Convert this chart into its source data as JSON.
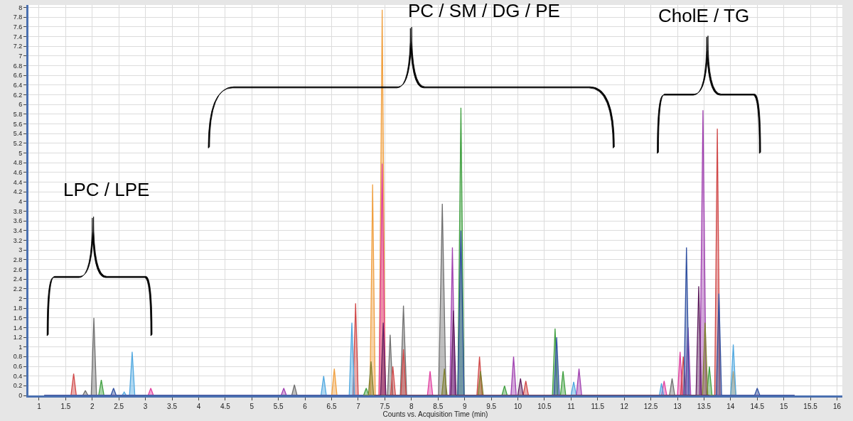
{
  "chart_data": {
    "type": "area",
    "xlabel": "Counts vs. Acquisition Time (min)",
    "xlim": [
      0.8,
      16.1
    ],
    "ylim": [
      0,
      8.05
    ],
    "xticks": [
      1,
      1.5,
      2,
      2.5,
      3,
      3.5,
      4,
      4.5,
      5,
      5.5,
      6,
      6.5,
      7,
      7.5,
      8,
      8.5,
      9,
      9.5,
      10,
      10.5,
      11,
      11.5,
      12,
      12.5,
      13,
      13.5,
      14,
      14.5,
      15,
      15.5,
      16
    ],
    "yticks": [
      0,
      0.2,
      0.4,
      0.6,
      0.8,
      1,
      1.2,
      1.4,
      1.6,
      1.8,
      2,
      2.2,
      2.4,
      2.6,
      2.8,
      3,
      3.2,
      3.4,
      3.6,
      3.8,
      4,
      4.2,
      4.4,
      4.6,
      4.8,
      5,
      5.2,
      5.4,
      5.6,
      5.8,
      6,
      6.2,
      6.4,
      6.6,
      6.8,
      7,
      7.2,
      7.4,
      7.6,
      7.8,
      8
    ],
    "grid": true,
    "marker": "none",
    "annotations": [
      "LPC / LPE",
      "PC / SM / DG / PE",
      "CholE / TG"
    ],
    "series": [
      {
        "color": "#707070",
        "x": [
          1.1,
          1.82,
          1.87,
          1.92,
          1.98,
          2.03,
          2.08,
          5.75,
          5.8,
          5.85,
          7.55,
          7.6,
          7.65,
          7.79,
          7.85,
          7.91,
          8.51,
          8.58,
          8.65,
          12.85,
          12.9,
          12.95,
          15.2
        ],
        "values": [
          0,
          0,
          0.1,
          0,
          0,
          1.6,
          0,
          0,
          0.22,
          0,
          0,
          1.25,
          0,
          0,
          1.85,
          0,
          0,
          3.95,
          0,
          0,
          0.35,
          0,
          0
        ]
      },
      {
        "color": "#f0a040",
        "x": [
          1.1,
          6.5,
          6.55,
          6.6,
          7.22,
          7.27,
          7.32,
          7.39,
          7.45,
          7.51,
          14.0,
          14.05,
          14.1,
          15.2
        ],
        "values": [
          0,
          0,
          0.55,
          0,
          0,
          4.35,
          0,
          0,
          7.95,
          0,
          0,
          0.5,
          0,
          0
        ]
      },
      {
        "color": "#e040a0",
        "x": [
          1.1,
          3.05,
          3.1,
          3.15,
          7.39,
          7.45,
          7.51,
          8.3,
          8.35,
          8.4,
          12.7,
          12.75,
          12.8,
          13.0,
          13.05,
          13.1,
          15.2
        ],
        "values": [
          0,
          0,
          0.15,
          0,
          0,
          4.78,
          0,
          0,
          0.5,
          0,
          0,
          0.3,
          0,
          0,
          0.9,
          0,
          0
        ]
      },
      {
        "color": "#d04848",
        "x": [
          1.1,
          1.6,
          1.65,
          1.7,
          6.9,
          6.95,
          7.0,
          7.61,
          7.65,
          7.7,
          7.8,
          7.85,
          7.9,
          9.23,
          9.28,
          9.33,
          10.1,
          10.15,
          10.2,
          13.06,
          13.11,
          13.16,
          13.7,
          13.75,
          13.8,
          15.2
        ],
        "values": [
          0,
          0,
          0.45,
          0,
          0,
          1.9,
          0,
          0,
          0.6,
          0,
          0,
          0.95,
          0,
          0,
          0.8,
          0,
          0,
          0.3,
          0,
          0,
          0.8,
          0,
          0,
          5.5,
          0,
          0
        ]
      },
      {
        "color": "#50a8e0",
        "x": [
          1.1,
          2.56,
          2.6,
          2.64,
          2.7,
          2.75,
          2.8,
          6.3,
          6.35,
          6.4,
          6.83,
          6.88,
          6.93,
          11.0,
          11.05,
          11.1,
          12.66,
          12.7,
          12.74,
          14.0,
          14.05,
          14.1,
          15.2
        ],
        "values": [
          0,
          0,
          0.07,
          0,
          0,
          0.9,
          0,
          0,
          0.4,
          0,
          0,
          1.5,
          0,
          0,
          0.28,
          0,
          0,
          0.25,
          0,
          0,
          1.05,
          0,
          0
        ]
      },
      {
        "color": "#40a040",
        "x": [
          1.1,
          2.12,
          2.17,
          2.22,
          7.1,
          7.15,
          7.2,
          8.87,
          8.93,
          8.99,
          9.7,
          9.75,
          9.8,
          10.65,
          10.7,
          10.75,
          10.8,
          10.85,
          10.9,
          13.55,
          13.6,
          13.65,
          15.2
        ],
        "values": [
          0,
          0,
          0.32,
          0,
          0,
          0.15,
          0,
          0,
          5.93,
          0,
          0,
          0.2,
          0,
          0,
          1.38,
          0,
          0,
          0.5,
          0,
          0,
          0.6,
          0,
          0
        ]
      },
      {
        "color": "#a040b0",
        "x": [
          1.1,
          5.55,
          5.6,
          5.65,
          8.72,
          8.77,
          8.82,
          9.87,
          9.92,
          9.97,
          11.1,
          11.15,
          11.2,
          13.15,
          13.2,
          13.25,
          13.42,
          13.48,
          13.54,
          15.2
        ],
        "values": [
          0,
          0,
          0.15,
          0,
          0,
          3.05,
          0,
          0,
          0.8,
          0,
          0,
          0.55,
          0,
          0,
          1.4,
          0,
          0,
          5.88,
          0,
          0
        ]
      },
      {
        "color": "#3050a0",
        "x": [
          1.1,
          2.35,
          2.4,
          2.45,
          8.87,
          8.93,
          8.99,
          10.68,
          10.73,
          10.78,
          13.12,
          13.17,
          13.22,
          13.73,
          13.78,
          13.83,
          14.45,
          14.5,
          14.55,
          15.2
        ],
        "values": [
          0,
          0,
          0.15,
          0,
          0,
          3.4,
          0,
          0,
          1.2,
          0,
          0,
          3.05,
          0,
          0,
          2.1,
          0,
          0,
          0.15,
          0,
          0
        ]
      },
      {
        "color": "#808030",
        "x": [
          7.1,
          7.19,
          7.24,
          7.29,
          8.57,
          8.62,
          8.67,
          9.25,
          9.3,
          9.35,
          13.47,
          13.52,
          13.57,
          13.7
        ],
        "values": [
          0,
          0,
          0.7,
          0,
          0,
          0.55,
          0,
          0,
          0.5,
          0,
          0,
          1.5,
          0,
          0
        ]
      },
      {
        "color": "#602060",
        "x": [
          7.3,
          7.42,
          7.47,
          7.52,
          8.74,
          8.79,
          8.84,
          10.0,
          10.05,
          10.1,
          13.35,
          13.4,
          13.45,
          13.6
        ],
        "values": [
          0,
          0,
          1.5,
          0,
          0,
          1.75,
          0,
          0,
          0.35,
          0,
          0,
          2.25,
          0,
          0
        ]
      }
    ]
  }
}
